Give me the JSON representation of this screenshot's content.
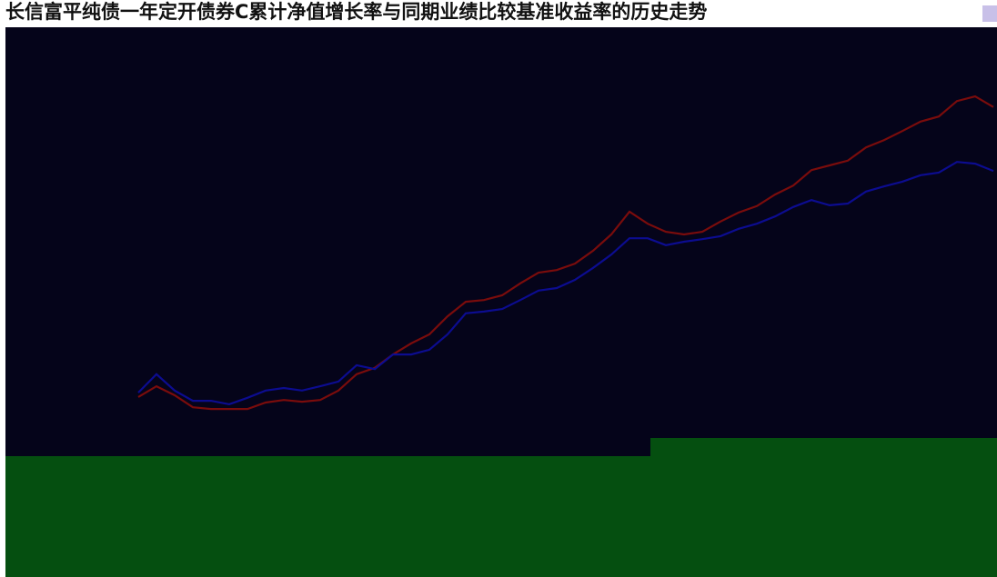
{
  "chart_data": {
    "type": "line",
    "title": "长信富平纯债一年定开债券C累计净值增长率与同期业绩比较基准收益率的历史走势",
    "categories": [
      null,
      null,
      null,
      null,
      null,
      null,
      null,
      null,
      null,
      null,
      null,
      null,
      null,
      null,
      null,
      null,
      null,
      null,
      null,
      null,
      null,
      null,
      null,
      null,
      null,
      null,
      null,
      null,
      null,
      null,
      null,
      null,
      null,
      null,
      null,
      null,
      null,
      null,
      null,
      null,
      null,
      null,
      null,
      null,
      null,
      null,
      null,
      null
    ],
    "ylim": [
      0,
      100
    ],
    "series": [
      {
        "color": "#7a0c0c",
        "values": [
          13.8,
          16.3,
          14.2,
          11.4,
          11.0,
          11.0,
          11.0,
          12.5,
          13.1,
          12.7,
          13.1,
          15.3,
          19.1,
          20.6,
          23.7,
          26.3,
          28.4,
          32.6,
          36.0,
          36.4,
          37.5,
          40.3,
          42.8,
          43.4,
          44.9,
          47.9,
          51.7,
          57.0,
          54.2,
          52.3,
          51.7,
          52.3,
          54.7,
          56.8,
          58.3,
          61.0,
          63.1,
          66.7,
          67.8,
          68.9,
          72.0,
          73.7,
          75.8,
          78.0,
          79.2,
          82.8,
          83.9,
          81.4
        ]
      },
      {
        "color": "#0c0c90",
        "values": [
          14.8,
          19.1,
          15.3,
          12.9,
          12.9,
          12.1,
          13.6,
          15.3,
          15.9,
          15.3,
          16.3,
          17.4,
          21.2,
          20.3,
          23.7,
          23.7,
          24.8,
          28.4,
          33.3,
          33.7,
          34.3,
          36.4,
          38.6,
          39.2,
          41.1,
          43.9,
          47.0,
          50.8,
          50.8,
          49.2,
          50.0,
          50.6,
          51.3,
          53.0,
          54.2,
          55.9,
          58.1,
          59.7,
          58.5,
          58.9,
          61.7,
          62.9,
          64.0,
          65.5,
          66.1,
          68.6,
          68.2,
          66.5
        ]
      }
    ]
  }
}
